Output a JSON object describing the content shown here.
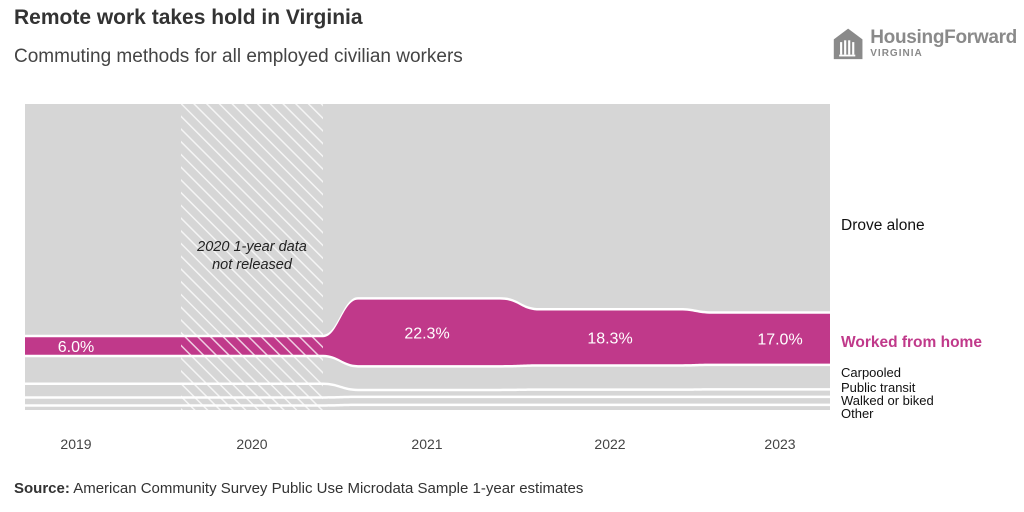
{
  "header": {
    "title": "Remote work takes hold in Virginia",
    "subtitle": "Commuting methods for all employed civilian workers"
  },
  "logo": {
    "name": "HousingForward",
    "sub": "VIRGINIA",
    "icon": "building-icon"
  },
  "source": {
    "label": "Source:",
    "text": "American Community Survey Public Use Microdata Sample 1-year estimates"
  },
  "colors": {
    "highlight": "#c0398a",
    "background_band": "#d6d6d6",
    "text": "#333333"
  },
  "chart_data": {
    "type": "area",
    "x": [
      "2019",
      "2020",
      "2021",
      "2022",
      "2023"
    ],
    "series": [
      {
        "name": "Drove alone",
        "values": [
          78.6,
          null,
          65.8,
          69.5,
          70.6
        ]
      },
      {
        "name": "Worked from home",
        "values": [
          6.0,
          null,
          22.3,
          18.3,
          17.0
        ]
      },
      {
        "name": "Carpooled",
        "values": [
          8.6,
          null,
          7.2,
          7.4,
          7.5
        ]
      },
      {
        "name": "Public transit",
        "values": [
          3.8,
          null,
          1.5,
          1.6,
          1.7
        ]
      },
      {
        "name": "Walked or biked",
        "values": [
          1.9,
          null,
          1.9,
          1.9,
          1.9
        ]
      },
      {
        "name": "Other",
        "values": [
          1.1,
          null,
          1.3,
          1.3,
          1.3
        ]
      }
    ],
    "data_labels": [
      "6.0%",
      "22.3%",
      "18.3%",
      "17.0%"
    ],
    "annotation": "2020 1-year data\nnot released",
    "annotation_lines": [
      "2020 1-year data",
      "not released"
    ],
    "highlighted_series": "Worked from home",
    "ylim": [
      0,
      100
    ],
    "grid": false,
    "legend": "right"
  }
}
